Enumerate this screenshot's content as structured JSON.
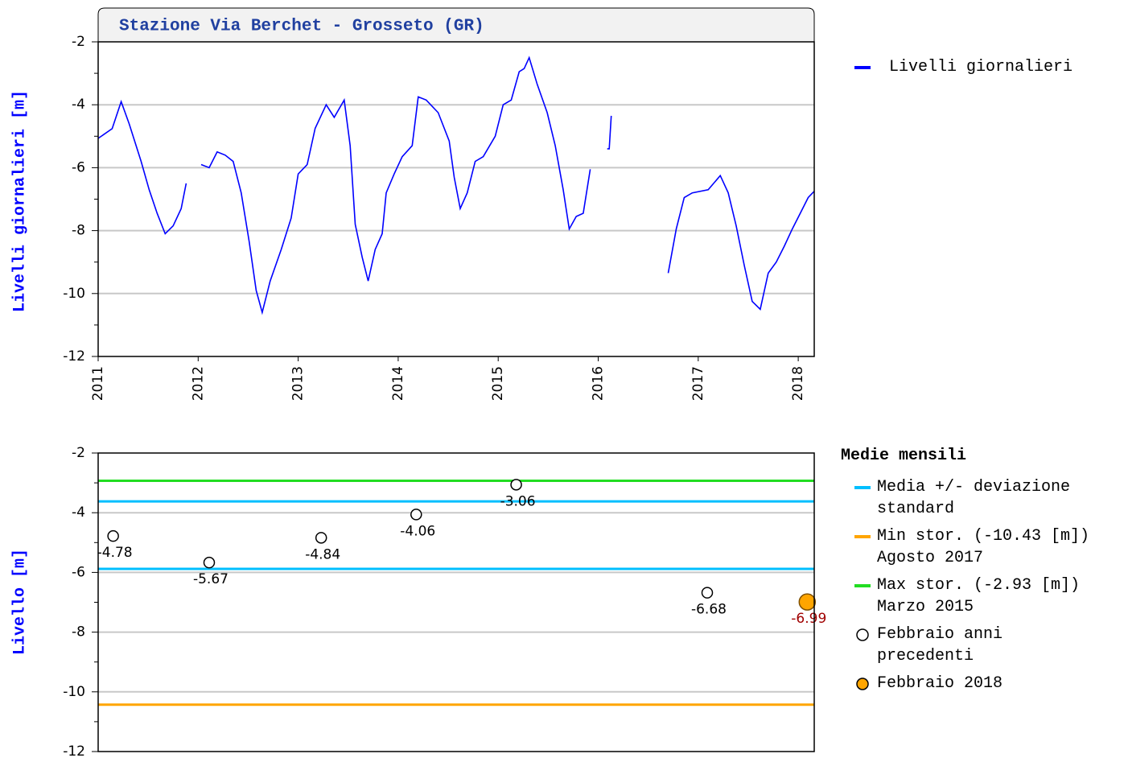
{
  "chart_data": [
    {
      "type": "line",
      "title": "Stazione Via Berchet - Grosseto (GR)",
      "ylabel": "Livelli giornalieri [m]",
      "x": [
        2011.0,
        2011.14,
        2011.23,
        2011.31,
        2011.43,
        2011.51,
        2011.59,
        2011.67,
        2011.75,
        2011.83,
        2011.88,
        2011.95,
        2012.03,
        2012.11,
        2012.19,
        2012.27,
        2012.35,
        2012.43,
        2012.51,
        2012.58,
        2012.64,
        2012.72,
        2012.83,
        2012.93,
        2013.0,
        2013.09,
        2013.17,
        2013.28,
        2013.36,
        2013.46,
        2013.52,
        2013.57,
        2013.64,
        2013.7,
        2013.77,
        2013.84,
        2013.88,
        2013.96,
        2014.04,
        2014.14,
        2014.2,
        2014.28,
        2014.4,
        2014.51,
        2014.56,
        2014.62,
        2014.69,
        2014.77,
        2014.85,
        2014.97,
        2015.05,
        2015.13,
        2015.21,
        2015.26,
        2015.31,
        2015.39,
        2015.49,
        2015.57,
        2015.65,
        2015.71,
        2015.78,
        2015.85,
        2015.92,
        2015.96,
        2016.09,
        2016.11,
        2016.13,
        2016.5,
        2016.7,
        2016.78,
        2016.86,
        2016.94,
        2017.1,
        2017.22,
        2017.3,
        2017.38,
        2017.46,
        2017.54,
        2017.62,
        2017.7,
        2017.78,
        2017.86,
        2017.94,
        2018.02,
        2018.1,
        2018.16
      ],
      "series": [
        {
          "name": "Livelli giornalieri",
          "color": "#0000ff",
          "values": [
            -5.07,
            -4.76,
            -3.9,
            -4.6,
            -5.8,
            -6.7,
            -7.45,
            -8.1,
            -7.85,
            -7.3,
            -6.5,
            null,
            -5.9,
            -6.0,
            -5.5,
            -5.6,
            -5.8,
            -6.8,
            -8.35,
            -9.9,
            -10.6,
            -9.6,
            -8.6,
            -7.6,
            -6.2,
            -5.9,
            -4.75,
            -4.0,
            -4.4,
            -3.85,
            -5.3,
            -7.8,
            -8.85,
            -9.6,
            -8.6,
            -8.1,
            -6.8,
            -6.2,
            -5.65,
            -5.3,
            -3.75,
            -3.85,
            -4.25,
            -5.15,
            -6.3,
            -7.3,
            -6.8,
            -5.8,
            -5.65,
            -5.0,
            -4.0,
            -3.85,
            -2.95,
            -2.85,
            -2.5,
            -3.35,
            -4.25,
            -5.3,
            -6.7,
            -7.95,
            -7.55,
            -7.45,
            -6.05,
            null,
            -5.4,
            -5.4,
            -4.35,
            null,
            -9.35,
            -7.95,
            -6.95,
            -6.8,
            -6.7,
            -6.25,
            -6.8,
            -7.85,
            -9.1,
            -10.25,
            -10.5,
            -9.35,
            -9.0,
            -8.5,
            -7.95,
            -7.45,
            -6.95,
            -6.75
          ]
        }
      ],
      "xlim": [
        2011,
        2018.16
      ],
      "xticks": [
        2011,
        2012,
        2013,
        2014,
        2015,
        2016,
        2017,
        2018
      ],
      "ylim": [
        -12,
        -2
      ],
      "yticks": [
        -12,
        -10,
        -8,
        -6,
        -4,
        -2
      ],
      "yminorticks": [
        -11,
        -9,
        -7,
        -5,
        -3
      ],
      "grid": true
    },
    {
      "type": "scatter",
      "ylabel": "Livello [m]",
      "legend_title": "Medie mensili",
      "xlim": [
        2011,
        2018.16
      ],
      "ylim": [
        -12,
        -2
      ],
      "yticks": [
        -12,
        -10,
        -8,
        -6,
        -4,
        -2
      ],
      "yminorticks": [
        -11,
        -9,
        -7,
        -5,
        -3
      ],
      "grid": true,
      "series": [
        {
          "name": "Media +/- deviazione standard",
          "kind": "hline",
          "color": "#00bfff",
          "values": [
            -3.62,
            -5.88
          ]
        },
        {
          "name": "Min stor. (-10.43 [m]) Agosto 2017",
          "kind": "hline",
          "color": "#ffa500",
          "values": [
            -10.43
          ]
        },
        {
          "name": "Max stor. (-2.93 [m]) Marzo 2015",
          "kind": "hline",
          "color": "#22dd22",
          "values": [
            -2.93
          ]
        },
        {
          "name": "Febbraio anni precedenti",
          "kind": "points",
          "color": "#ffffff",
          "label_color": "#000000",
          "x": [
            2011.15,
            2012.11,
            2013.23,
            2014.18,
            2015.18,
            2017.09
          ],
          "values": [
            -4.78,
            -5.67,
            -4.84,
            -4.06,
            -3.06,
            -6.68
          ]
        },
        {
          "name": "Febbraio 2018",
          "kind": "points",
          "color": "#ffa500",
          "label_color": "#a00000",
          "x": [
            2018.09
          ],
          "values": [
            -6.99
          ]
        }
      ]
    }
  ]
}
